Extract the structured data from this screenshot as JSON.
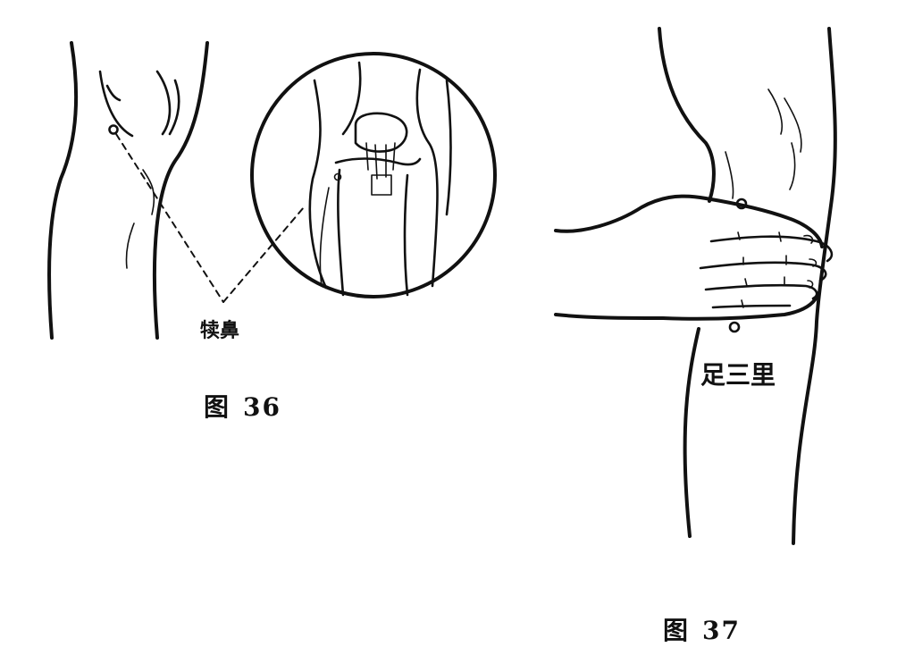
{
  "figure36": {
    "acupoint_label": "犊鼻",
    "caption_prefix": "图",
    "caption_number": "36"
  },
  "figure37": {
    "acupoint_label": "足三里",
    "caption_prefix": "图",
    "caption_number": "37"
  },
  "colors": {
    "ink": "#111111",
    "paper": "#ffffff"
  }
}
